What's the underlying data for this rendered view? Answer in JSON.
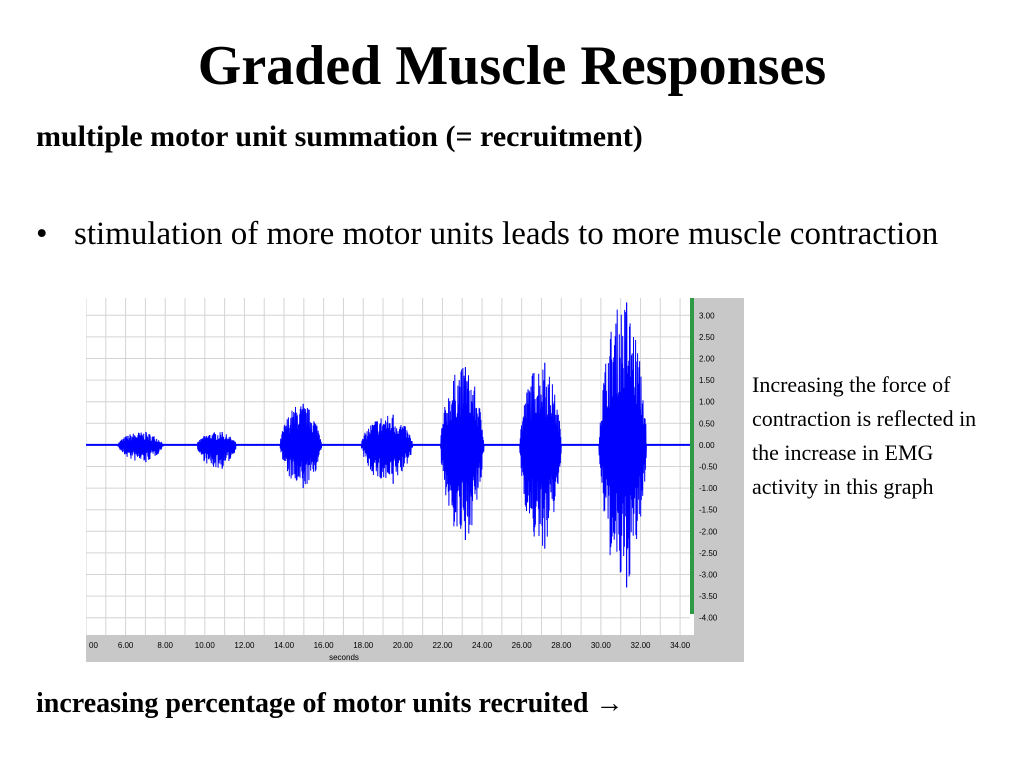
{
  "slide": {
    "title": "Graded Muscle Responses",
    "subtitle": "multiple motor unit summation (= recruitment)",
    "bullet_mark": "•",
    "bullet_text": "stimulation of more motor units leads to more muscle contraction",
    "side_note": "Increasing the force of contraction is reflected in the increase in EMG activity in this graph",
    "footer": "increasing percentage of motor units recruited →"
  },
  "chart_data": {
    "type": "line",
    "xlabel": "seconds",
    "ylabel": "",
    "xlim": [
      4.0,
      34.5
    ],
    "ylim": [
      -4.4,
      3.4
    ],
    "x_ticks": [
      "00",
      "6.00",
      "8.00",
      "10.00",
      "12.00",
      "14.00",
      "16.00",
      "18.00",
      "20.00",
      "22.00",
      "24.00",
      "26.00",
      "28.00",
      "30.00",
      "32.00",
      "34.00"
    ],
    "y_ticks": [
      "3.50",
      "3.00",
      "2.50",
      "2.00",
      "1.50",
      "1.00",
      "0.50",
      "0.00",
      "-0.50",
      "-1.00",
      "-1.50",
      "-2.00",
      "-2.50",
      "-3.00",
      "-3.50",
      "-4.00"
    ],
    "grid": true,
    "series": [
      {
        "color": "#0000ff",
        "baseline_amplitude": 0.02,
        "bursts": [
          {
            "start": 5.6,
            "end": 7.9,
            "max": 0.3,
            "min": -0.4
          },
          {
            "start": 9.6,
            "end": 11.6,
            "max": 0.3,
            "min": -0.55
          },
          {
            "start": 13.8,
            "end": 15.9,
            "max": 0.95,
            "min": -1.0
          },
          {
            "start": 17.9,
            "end": 20.5,
            "max": 0.7,
            "min": -0.9
          },
          {
            "start": 21.9,
            "end": 24.1,
            "max": 1.8,
            "min": -2.2
          },
          {
            "start": 25.9,
            "end": 28.0,
            "max": 1.9,
            "min": -2.4
          },
          {
            "start": 29.9,
            "end": 32.3,
            "max": 3.3,
            "min": -3.3
          }
        ]
      }
    ],
    "colors": {
      "grid": "#d4d4d4",
      "marker": "#2e9a45",
      "axis_panel": "#c8c8c8"
    }
  }
}
